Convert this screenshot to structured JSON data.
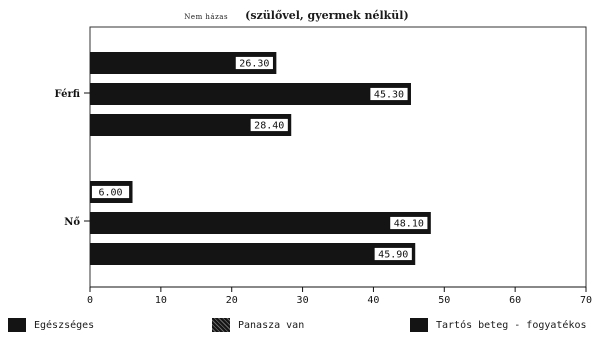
{
  "chart_data": {
    "type": "bar",
    "orientation": "horizontal",
    "subtitle_prefix": "Nem házas",
    "subtitle": "(szülővel, gyermek nélkül)",
    "xlim": [
      0,
      70
    ],
    "xticks": [
      "0",
      "10",
      "20",
      "30",
      "40",
      "50",
      "60",
      "70"
    ],
    "legend": [
      "Egészséges",
      "Panasza van",
      "Tartós beteg - fogyatékos"
    ],
    "legend_position": "bottom",
    "grid": false,
    "bar_color": "#141414",
    "groups": [
      {
        "label": "Férfi",
        "bars": [
          {
            "value": 26.3,
            "label": "26.30"
          },
          {
            "value": 45.3,
            "label": "45.30"
          },
          {
            "value": 28.4,
            "label": "28.40"
          }
        ]
      },
      {
        "label": "Nő",
        "bars": [
          {
            "value": 6.0,
            "label": "6.00"
          },
          {
            "value": 48.1,
            "label": "48.10"
          },
          {
            "value": 45.9,
            "label": "45.90"
          }
        ]
      }
    ]
  }
}
